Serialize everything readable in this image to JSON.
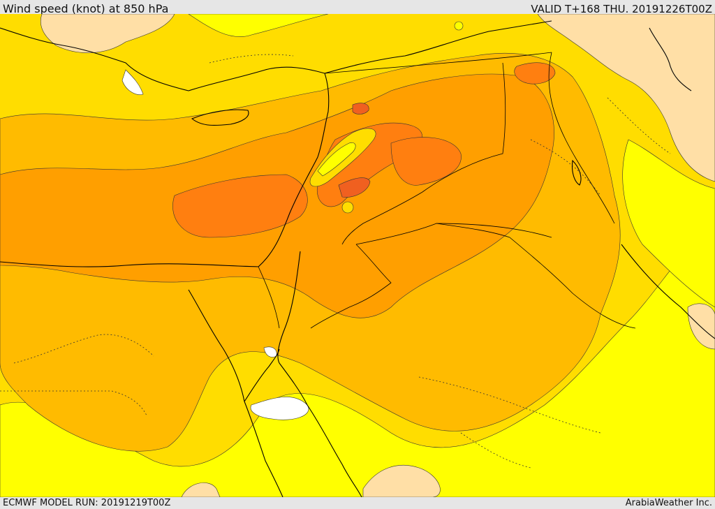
{
  "header": {
    "title": "Wind speed (knot) at 850 hPa",
    "valid_label": "VALID T+168 THU. 20191226T00Z"
  },
  "footer": {
    "model_run": "ECMWF MODEL RUN: 20191219T00Z",
    "credit": "ArabiaWeather Inc."
  },
  "map": {
    "region": "Eastern Mediterranean / Levant / Arabian Peninsula",
    "field": "wind speed at 850 hPa",
    "colors": {
      "calm": "#ffffff",
      "low": "#ffdfa6",
      "light": "#ffff00",
      "moderate": "#ffdd00",
      "fresh": "#ffbb00",
      "strong": "#ff9f00",
      "very_strong": "#ff7f10",
      "gale": "#f06020",
      "boundary_line": "#000000"
    }
  }
}
